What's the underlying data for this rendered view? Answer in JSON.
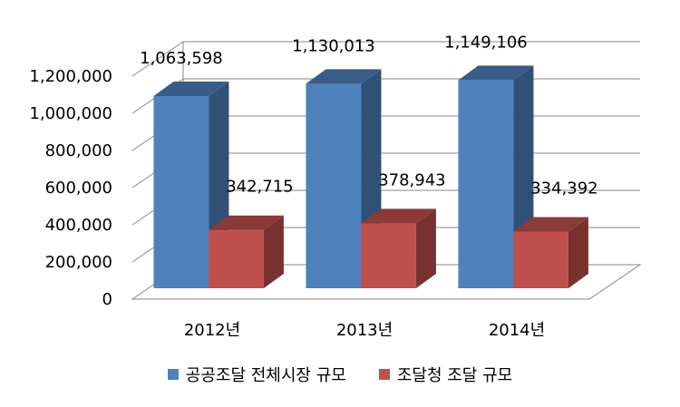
{
  "chart_data": {
    "type": "bar",
    "categories": [
      "2012년",
      "2013년",
      "2014년"
    ],
    "series": [
      {
        "name": "공공조달 전체시장 규모",
        "values": [
          1063598,
          1130013,
          1149106
        ],
        "labels": [
          "1,063,598",
          "1,130,013",
          "1,149,106"
        ],
        "color": "#4F81BD"
      },
      {
        "name": "조달청 조달 규모",
        "values": [
          342715,
          378943,
          334392
        ],
        "labels": [
          "342,715",
          "378,943",
          "334,392"
        ],
        "color": "#C0504D"
      }
    ],
    "ylim": [
      0,
      1200000
    ],
    "yticks": [
      0,
      200000,
      400000,
      600000,
      800000,
      1000000,
      1200000
    ],
    "ytick_labels": [
      "0",
      "200,000",
      "400,000",
      "600,000",
      "800,000",
      "1,000,000",
      "1,200,000"
    ],
    "grid": true,
    "legend_position": "bottom",
    "three_d": true
  }
}
